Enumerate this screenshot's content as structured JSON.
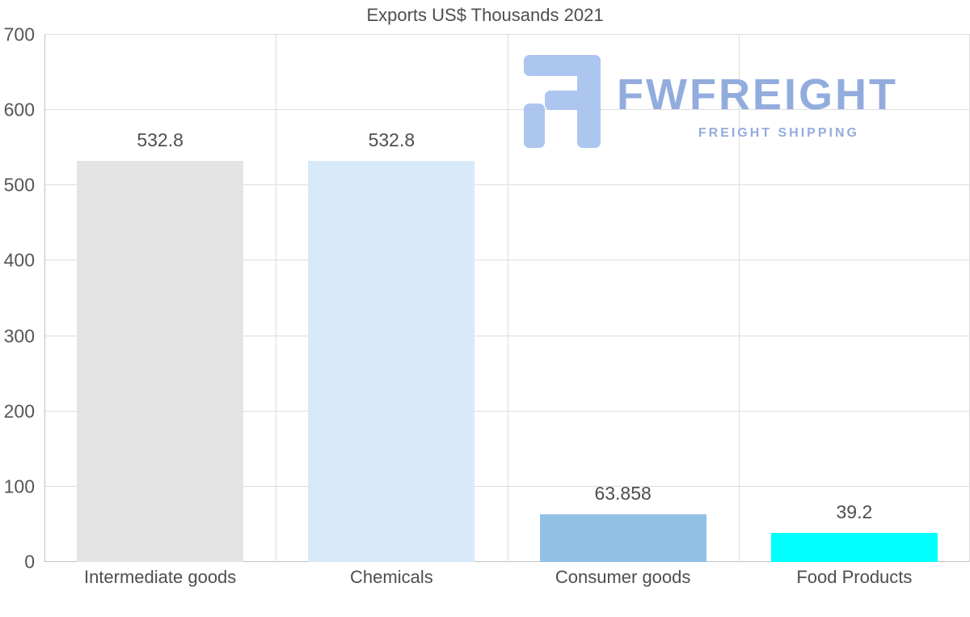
{
  "title": "Exports US$ Thousands 2021",
  "watermark": {
    "brand": "FWFREIGHT",
    "tagline": "FREIGHT SHIPPING",
    "logo_color": "#a9c3ef",
    "text_color": "#8ea8dd"
  },
  "chart_data": {
    "type": "bar",
    "title": "Exports US$ Thousands 2021",
    "categories": [
      "Intermediate goods",
      "Chemicals",
      "Consumer goods",
      "Food Products"
    ],
    "values": [
      532.8,
      532.8,
      63.858,
      39.2
    ],
    "value_labels": [
      "532.8",
      "532.8",
      "63.858",
      "39.2"
    ],
    "bar_colors": [
      "#e4e4e4",
      "#d8e9f9",
      "#92c1e6",
      "#00ffff"
    ],
    "xlabel": "",
    "ylabel": "",
    "ylim": [
      0,
      700
    ],
    "yticks": [
      0,
      100,
      200,
      300,
      400,
      500,
      600,
      700
    ],
    "grid": true,
    "legend": false,
    "gridline_color": "#dddddd",
    "axis_line_color": "#c3c3c3",
    "text_color": "#4e4e4e"
  }
}
